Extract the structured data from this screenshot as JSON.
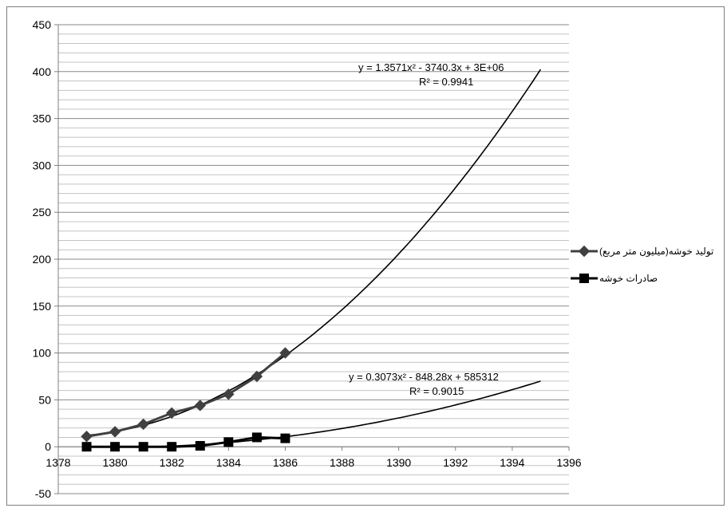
{
  "chart_data": {
    "type": "line",
    "title": "",
    "xlabel": "",
    "ylabel": "",
    "xlim": [
      1378,
      1396
    ],
    "ylim": [
      -50,
      450
    ],
    "x_ticks": [
      1378,
      1380,
      1382,
      1384,
      1386,
      1388,
      1390,
      1392,
      1394,
      1396
    ],
    "y_ticks": [
      -50,
      0,
      50,
      100,
      150,
      200,
      250,
      300,
      350,
      400,
      450
    ],
    "grid": "horizontal",
    "legend_position": "right",
    "series": [
      {
        "name": "(میلیون متر مربع)تولید خوشه",
        "marker": "diamond",
        "color": "#404040",
        "x": [
          1379,
          1380,
          1381,
          1382,
          1383,
          1384,
          1385,
          1386
        ],
        "y": [
          11,
          16,
          24,
          36,
          44,
          56,
          75,
          100
        ],
        "trendline": {
          "type": "polynomial",
          "equation": "y = 1.3571x² - 3740.3x + 3E+06",
          "r2": "R² = 0.9941",
          "x_end": 1395,
          "y_end": 402
        }
      },
      {
        "name": "صادرات خوشه",
        "marker": "square",
        "color": "#000000",
        "x": [
          1379,
          1380,
          1381,
          1382,
          1383,
          1384,
          1385,
          1386
        ],
        "y": [
          0,
          0,
          0,
          0,
          1,
          5,
          10,
          9
        ],
        "trendline": {
          "type": "polynomial",
          "equation": "y = 0.3073x² - 848.28x + 585312",
          "r2": "R² = 0.9015",
          "x_end": 1395,
          "y_end": 68
        }
      }
    ]
  }
}
